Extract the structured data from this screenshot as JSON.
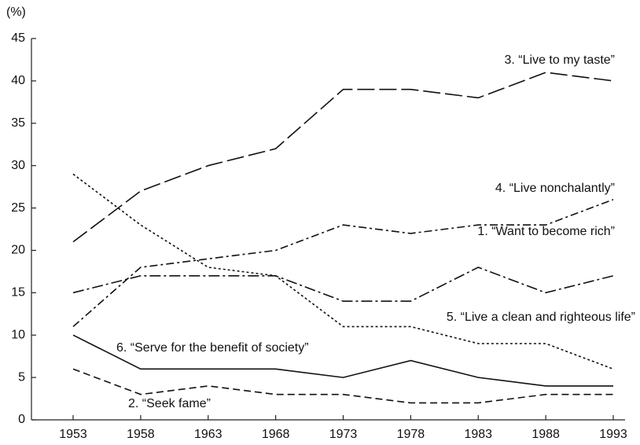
{
  "chart_data": {
    "type": "line",
    "y_label": "(%)",
    "categories": [
      "1953",
      "1958",
      "1963",
      "1968",
      "1973",
      "1978",
      "1983",
      "1988",
      "1993"
    ],
    "ylim": [
      0,
      45
    ],
    "yticks": [
      0,
      5,
      10,
      15,
      20,
      25,
      30,
      35,
      40,
      45
    ],
    "series": [
      {
        "name": "3. “Live to my taste”",
        "color": "#111111",
        "dash": "long-dash",
        "values": [
          21,
          27,
          30,
          32,
          39,
          39,
          38,
          41,
          40
        ]
      },
      {
        "name": "4. “Live nonchalantly”",
        "color": "#111111",
        "dash": "dash-dot",
        "values": [
          11,
          18,
          19,
          20,
          23,
          22,
          23,
          23,
          26
        ]
      },
      {
        "name": "1. “Want to become rich”",
        "color": "#111111",
        "dash": "dash-dot-long",
        "values": [
          15,
          17,
          17,
          17,
          14,
          14,
          18,
          15,
          17
        ]
      },
      {
        "name": "5. “Live a clean and righteous life”",
        "color": "#111111",
        "dash": "dotted",
        "values": [
          29,
          23,
          18,
          17,
          11,
          11,
          9,
          9,
          6
        ]
      },
      {
        "name": "6. “Serve for the benefit of society”",
        "color": "#111111",
        "dash": "solid",
        "values": [
          10,
          6,
          6,
          6,
          5,
          7,
          5,
          4,
          4
        ]
      },
      {
        "name": "2. “Seek fame”",
        "color": "#111111",
        "dash": "dashed",
        "values": [
          6,
          3,
          4,
          3,
          3,
          2,
          2,
          3,
          3
        ]
      }
    ]
  }
}
